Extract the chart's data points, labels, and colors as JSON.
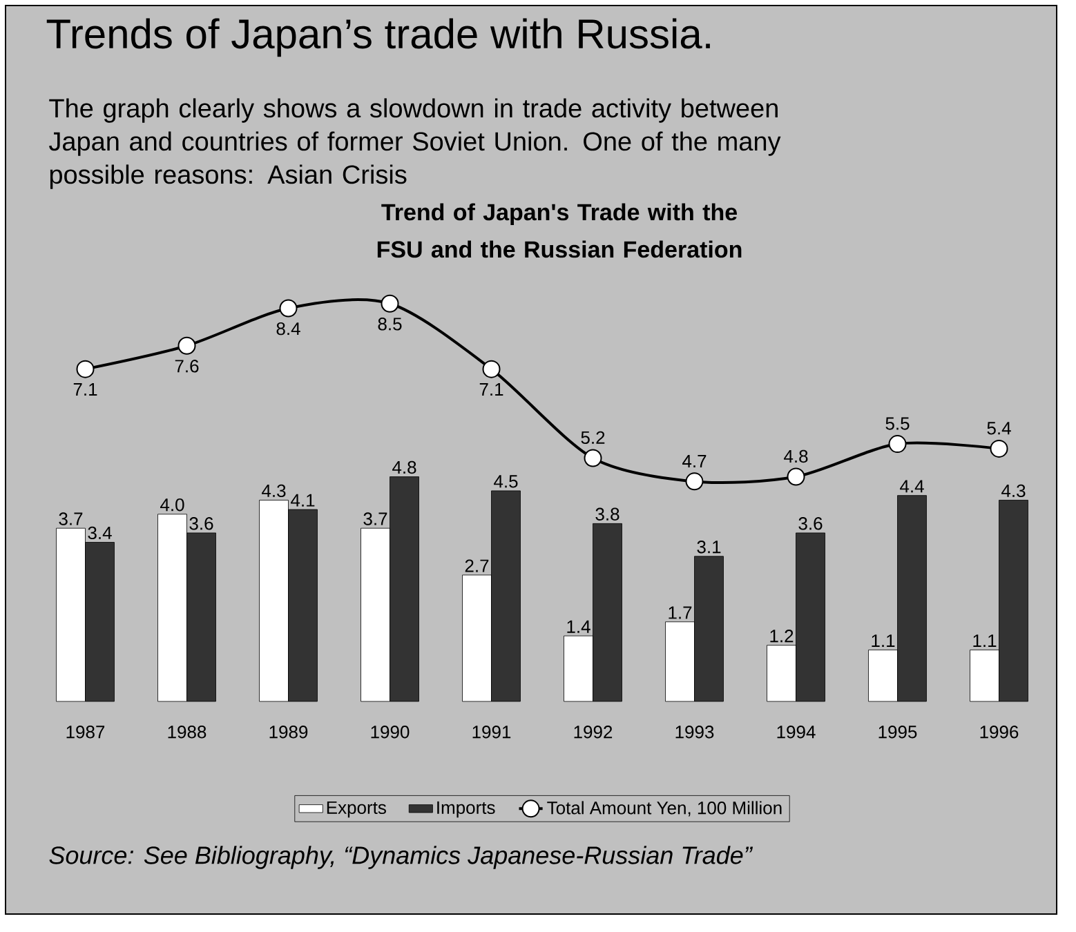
{
  "chart_data": {
    "type": "bar",
    "title": "Trends of Japan’s trade with Russia.",
    "subtitle": "The graph clearly shows a slowdown in trade activity between Japan and countries of former Soviet Union. One of the many possible reasons: Asian Crisis",
    "annotations": [
      "Trend of Japan's Trade with the FSU and the Russian Federation",
      "Source: See Bibliography, “Dynamics Japanese-Russian Trade”"
    ],
    "categories": [
      "1987",
      "1988",
      "1989",
      "1990",
      "1991",
      "1992",
      "1993",
      "1994",
      "1995",
      "1996"
    ],
    "series": [
      {
        "name": "Exports",
        "color": "#ffffff",
        "values": [
          3.7,
          4.0,
          4.3,
          3.7,
          2.7,
          1.4,
          1.7,
          1.2,
          1.1,
          1.1
        ],
        "value_labels": [
          "3.7",
          "4.0",
          "4.3",
          "3.7",
          "2.7",
          "1.4",
          "1.7",
          "1.2",
          "1.1",
          "1.1"
        ]
      },
      {
        "name": "Imports",
        "color": "#333333",
        "values": [
          3.4,
          3.6,
          4.1,
          4.8,
          4.5,
          3.8,
          3.1,
          3.6,
          4.4,
          4.3
        ],
        "value_labels": [
          "3.4",
          "3.6",
          "4.1",
          "4.8",
          "4.5",
          "3.8",
          "3.1",
          "3.6",
          "4.4",
          "4.3"
        ]
      },
      {
        "name": "Total Amount Yen, 100 Million",
        "type": "line",
        "color": "#000000",
        "marker": "circle",
        "values": [
          7.1,
          7.6,
          8.4,
          8.5,
          7.1,
          5.2,
          4.7,
          4.8,
          5.5,
          5.4
        ],
        "value_labels": [
          "7.1",
          "7.6",
          "8.4",
          "8.5",
          "7.1",
          "5.2",
          "4.7",
          "4.8",
          "5.5",
          "5.4"
        ]
      }
    ],
    "legend": "bottom",
    "tick_labels": "x"
  }
}
